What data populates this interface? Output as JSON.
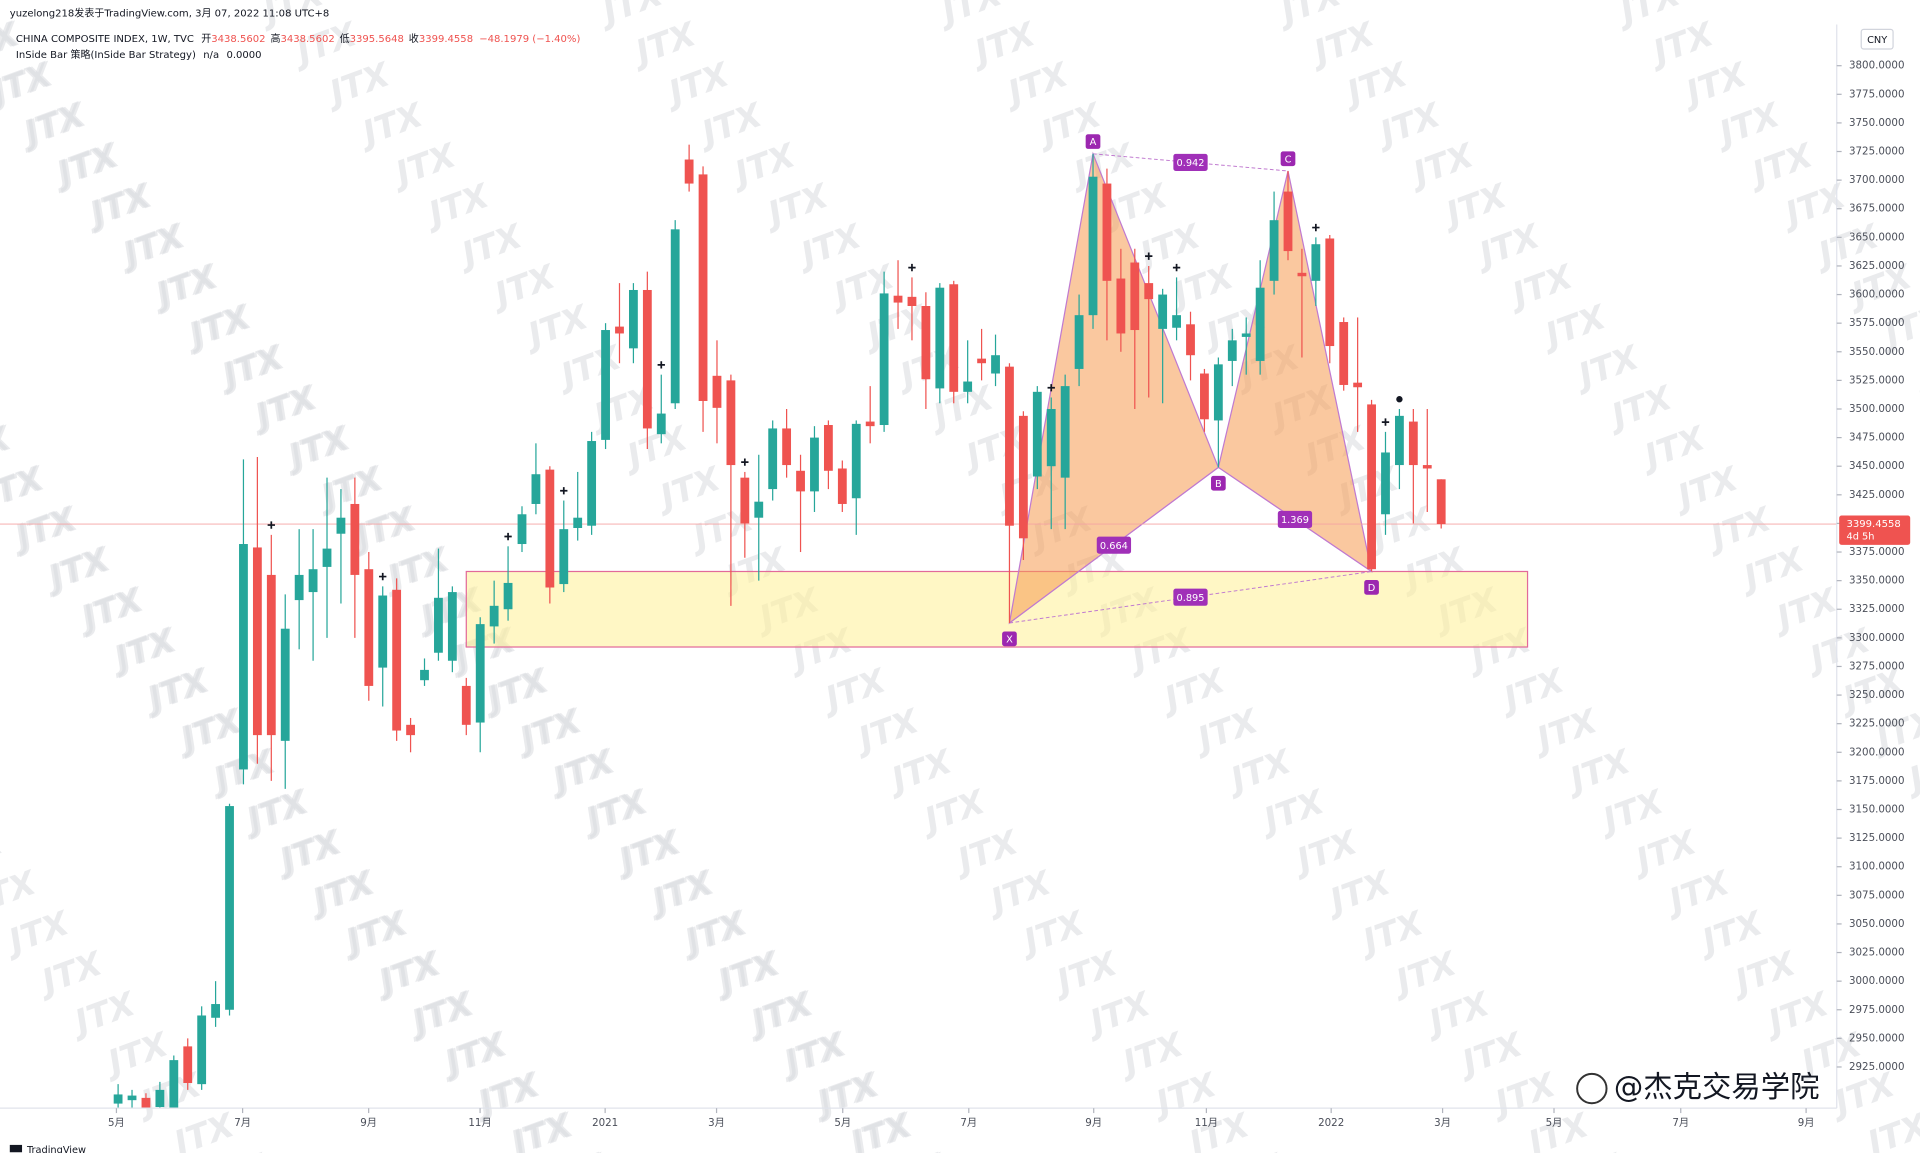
{
  "chart_data": {
    "type": "candlestick",
    "author_line": "yuzelong218发表于TradingView.com, 3月 07, 2022 11:08 UTC+8",
    "symbol": "CHINA COMPOSITE INDEX, 1W, TVC",
    "ohlc_legend": [
      {
        "name": "开",
        "value": 3438.5602
      },
      {
        "name": "高",
        "value": 3438.5602
      },
      {
        "name": "低",
        "value": 3395.5648
      },
      {
        "name": "收",
        "value": 3399.4558
      }
    ],
    "change": "−48.1979 (−1.40%)",
    "indicator": {
      "name": "InSide Bar 策略(InSide Bar Strategy)",
      "state": "n/a",
      "value": "0.0000"
    },
    "colors": {
      "up": "#26a69a",
      "down": "#ef5350"
    },
    "open": [
      2893,
      2896,
      2898,
      2890,
      2889,
      2943,
      2910,
      2968,
      2975,
      3185,
      3379,
      3355,
      3210,
      3333,
      3340,
      3362,
      3391,
      3417,
      3360,
      3274,
      3342,
      3224,
      3263,
      3287,
      3280,
      3258,
      3226,
      3310,
      3325,
      3382,
      3417,
      3447,
      3347,
      3396,
      3398,
      3473,
      3572,
      3553,
      3604,
      3478,
      3505,
      3718,
      3705,
      3529,
      3525,
      3440,
      3405,
      3430,
      3483,
      3446,
      3428,
      3486,
      3448,
      3422,
      3489,
      3486,
      3599,
      3598,
      3590,
      3518,
      3609,
      3515,
      3544,
      3531,
      3537,
      3494,
      3441,
      3450,
      3440,
      3535,
      3582,
      3697,
      3614,
      3628,
      3610,
      3570,
      3571,
      3574,
      3531,
      3490,
      3542,
      3563,
      3542,
      3612,
      3690,
      3619,
      3612,
      3649,
      3576,
      3523,
      3504,
      3408,
      3451,
      3489,
      3451,
      3438.5602
    ],
    "high": [
      2910,
      2905,
      2902,
      2912,
      2935,
      2950,
      2978,
      3000,
      3155,
      3456,
      3458,
      3390,
      3338,
      3395,
      3395,
      3440,
      3430,
      3440,
      3375,
      3345,
      3352,
      3230,
      3282,
      3378,
      3345,
      3265,
      3318,
      3350,
      3380,
      3415,
      3470,
      3450,
      3420,
      3445,
      3480,
      3575,
      3610,
      3610,
      3620,
      3530,
      3665,
      3731,
      3712,
      3560,
      3530,
      3445,
      3460,
      3490,
      3500,
      3460,
      3485,
      3490,
      3455,
      3490,
      3520,
      3620,
      3630,
      3615,
      3602,
      3610,
      3612,
      3560,
      3570,
      3565,
      3540,
      3498,
      3520,
      3510,
      3530,
      3600,
      3723,
      3710,
      3640,
      3640,
      3625,
      3605,
      3615,
      3585,
      3535,
      3545,
      3570,
      3580,
      3630,
      3690,
      3708,
      3640,
      3650,
      3652,
      3580,
      3580,
      3508,
      3480,
      3500,
      3500,
      3500,
      3438.5602
    ],
    "low": [
      2885,
      2888,
      2880,
      2880,
      2885,
      2905,
      2905,
      2960,
      2970,
      3172,
      3190,
      3175,
      3168,
      3290,
      3280,
      3300,
      3330,
      3300,
      3245,
      3240,
      3210,
      3200,
      3258,
      3280,
      3270,
      3215,
      3200,
      3295,
      3315,
      3375,
      3408,
      3330,
      3340,
      3385,
      3390,
      3465,
      3540,
      3540,
      3465,
      3470,
      3500,
      3690,
      3480,
      3470,
      3328,
      3370,
      3350,
      3420,
      3440,
      3375,
      3410,
      3430,
      3410,
      3390,
      3470,
      3480,
      3570,
      3560,
      3500,
      3505,
      3505,
      3505,
      3525,
      3520,
      3313,
      3368,
      3430,
      3395,
      3395,
      3520,
      3570,
      3560,
      3550,
      3500,
      3510,
      3505,
      3560,
      3525,
      3480,
      3449,
      3520,
      3530,
      3530,
      3600,
      3630,
      3545,
      3590,
      3540,
      3516,
      3480,
      3358,
      3390,
      3430,
      3400,
      3410,
      3395.5648
    ],
    "close": [
      2901,
      2900,
      2888,
      2905,
      2931,
      2911,
      2970,
      2980,
      3153,
      3382,
      3215,
      3215,
      3308,
      3355,
      3360,
      3378,
      3405,
      3355,
      3258,
      3337,
      3219,
      3215,
      3272,
      3335,
      3340,
      3224,
      3312,
      3328,
      3348,
      3408,
      3443,
      3344,
      3395,
      3405,
      3472,
      3569,
      3566,
      3604,
      3483,
      3496,
      3657,
      3697,
      3507,
      3501,
      3451,
      3400,
      3419,
      3483,
      3451,
      3428,
      3475,
      3446,
      3417,
      3487,
      3485,
      3601,
      3593,
      3590,
      3526,
      3606,
      3515,
      3524,
      3540,
      3547,
      3398,
      3387,
      3515,
      3500,
      3520,
      3582,
      3703,
      3612,
      3566,
      3569,
      3596,
      3600,
      3582,
      3547,
      3491,
      3539,
      3560,
      3566,
      3606,
      3665,
      3638,
      3616,
      3644,
      3555,
      3521,
      3519,
      3360,
      3462,
      3494,
      3451,
      3448,
      3399.4558
    ],
    "signals": [
      11,
      19,
      28,
      32,
      39,
      45,
      57,
      67,
      74,
      76,
      86,
      91
    ],
    "exit_signals": [
      92
    ],
    "xlim": [
      -8.48,
      123.4
    ],
    "ylim": [
      2889,
      3836
    ],
    "xticks": [
      {
        "value": -0.12,
        "label": "5月"
      },
      {
        "value": 8.94,
        "label": "7月"
      },
      {
        "value": 17.99,
        "label": "9月"
      },
      {
        "value": 25.99,
        "label": "11月"
      },
      {
        "value": 34.97,
        "label": "2021"
      },
      {
        "value": 42.97,
        "label": "3月"
      },
      {
        "value": 52.03,
        "label": "5月"
      },
      {
        "value": 61.08,
        "label": "7月"
      },
      {
        "value": 70.05,
        "label": "9月"
      },
      {
        "value": 78.14,
        "label": "11月"
      },
      {
        "value": 87.1,
        "label": "2022"
      },
      {
        "value": 95.1,
        "label": "3月"
      },
      {
        "value": 103.1,
        "label": "5月"
      },
      {
        "value": 112.2,
        "label": "7月"
      },
      {
        "value": 121.2,
        "label": "9月"
      }
    ],
    "yticks": [
      {
        "value": 2925,
        "label": "2925.0000"
      },
      {
        "value": 2950,
        "label": "2950.0000"
      },
      {
        "value": 2975,
        "label": "2975.0000"
      },
      {
        "value": 3000,
        "label": "3000.0000"
      },
      {
        "value": 3025,
        "label": "3025.0000"
      },
      {
        "value": 3050,
        "label": "3050.0000"
      },
      {
        "value": 3075,
        "label": "3075.0000"
      },
      {
        "value": 3100,
        "label": "3100.0000"
      },
      {
        "value": 3125,
        "label": "3125.0000"
      },
      {
        "value": 3150,
        "label": "3150.0000"
      },
      {
        "value": 3175,
        "label": "3175.0000"
      },
      {
        "value": 3200,
        "label": "3200.0000"
      },
      {
        "value": 3225,
        "label": "3225.0000"
      },
      {
        "value": 3250,
        "label": "3250.0000"
      },
      {
        "value": 3275,
        "label": "3275.0000"
      },
      {
        "value": 3300,
        "label": "3300.0000"
      },
      {
        "value": 3325,
        "label": "3325.0000"
      },
      {
        "value": 3350,
        "label": "3350.0000"
      },
      {
        "value": 3375,
        "label": "3375.0000"
      },
      {
        "value": 3400,
        "label": "3400.0000"
      },
      {
        "value": 3425,
        "label": "3425.0000"
      },
      {
        "value": 3450,
        "label": "3450.0000"
      },
      {
        "value": 3475,
        "label": "3475.0000"
      },
      {
        "value": 3500,
        "label": "3500.0000"
      },
      {
        "value": 3525,
        "label": "3525.0000"
      },
      {
        "value": 3550,
        "label": "3550.0000"
      },
      {
        "value": 3575,
        "label": "3575.0000"
      },
      {
        "value": 3600,
        "label": "3600.0000"
      },
      {
        "value": 3625,
        "label": "3625.0000"
      },
      {
        "value": 3650,
        "label": "3650.0000"
      },
      {
        "value": 3675,
        "label": "3675.0000"
      },
      {
        "value": 3700,
        "label": "3700.0000"
      },
      {
        "value": 3725,
        "label": "3725.0000"
      },
      {
        "value": 3750,
        "label": "3750.0000"
      },
      {
        "value": 3775,
        "label": "3775.0000"
      },
      {
        "value": 3800,
        "label": "3800.0000"
      }
    ],
    "currency": "CNY",
    "last_price": 3399.4558,
    "countdown": "4d 5h",
    "pattern": {
      "points": [
        {
          "name": "X",
          "x": 64,
          "y": 3313
        },
        {
          "name": "A",
          "x": 70,
          "y": 3723
        },
        {
          "name": "B",
          "x": 79,
          "y": 3449
        },
        {
          "name": "C",
          "x": 84,
          "y": 3708
        },
        {
          "name": "D",
          "x": 90,
          "y": 3358
        }
      ],
      "ratios": [
        0.942,
        0.664,
        1.369,
        0.895
      ]
    },
    "zone": {
      "x": [
        25,
        101.2
      ],
      "y": [
        3292,
        3358
      ]
    },
    "watermark": "JTX",
    "credit": "@杰克交易学院",
    "logo": "TradingView"
  }
}
